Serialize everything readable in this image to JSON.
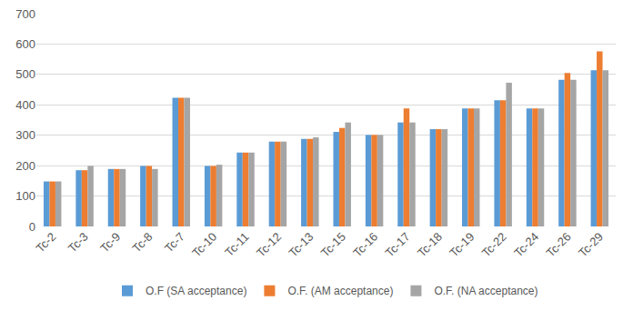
{
  "chart_data": {
    "type": "bar",
    "categories": [
      "Tc-2",
      "Tc-3",
      "Tc-9",
      "Tc-8",
      "Tc-7",
      "Tc-10",
      "Tc-11",
      "Tc-12",
      "Tc-13",
      "Tc-15",
      "Tc-16",
      "Tc-17",
      "Tc-18",
      "Tc-19",
      "Tc-22",
      "Tc-24",
      "Tc-26",
      "Tc-29"
    ],
    "series": [
      {
        "name": "O.F (SA acceptance)",
        "color": "#5b9bd5",
        "values": [
          148,
          185,
          189,
          199,
          423,
          199,
          243,
          279,
          288,
          311,
          301,
          342,
          320,
          388,
          415,
          388,
          482,
          514
        ]
      },
      {
        "name": "O.F. (AM acceptance)",
        "color": "#ed7d31",
        "values": [
          148,
          185,
          189,
          199,
          423,
          199,
          243,
          279,
          288,
          324,
          301,
          388,
          320,
          388,
          415,
          388,
          505,
          576
        ]
      },
      {
        "name": "O.F. (NA acceptance)",
        "color": "#a5a5a5",
        "values": [
          148,
          199,
          189,
          189,
          423,
          203,
          243,
          279,
          293,
          342,
          301,
          342,
          320,
          388,
          473,
          388,
          482,
          514
        ]
      }
    ],
    "ylim": [
      0,
      700
    ],
    "yticks": [
      0,
      100,
      200,
      300,
      400,
      500,
      600,
      700
    ],
    "grid": true,
    "legend": "bottom"
  }
}
